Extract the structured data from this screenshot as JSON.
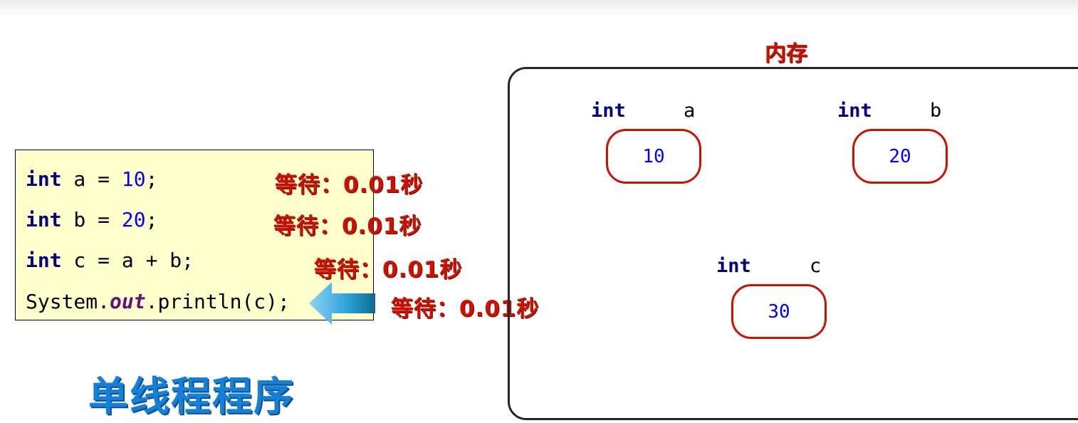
{
  "code": {
    "lines": [
      {
        "kw": "int",
        "mid": " a = ",
        "num": "10",
        "tail": ";"
      },
      {
        "kw": "int",
        "mid": " b = ",
        "num": "20",
        "tail": ";"
      },
      {
        "kw": "int",
        "rest": " c = a + b;"
      },
      {
        "obj": "System.",
        "field": "out",
        "call": ".println(c);"
      }
    ]
  },
  "waits": [
    "等待：0.01秒",
    "等待：0.01秒",
    "等待：0.01秒",
    "等待：0.01秒"
  ],
  "title": "单线程程序",
  "memory": {
    "label": "内存",
    "vars": [
      {
        "type": "int",
        "name": "a",
        "value": "10"
      },
      {
        "type": "int",
        "name": "b",
        "value": "20"
      },
      {
        "type": "int",
        "name": "c",
        "value": "30"
      }
    ]
  },
  "colors": {
    "accent_red": "#cc1100",
    "title_blue": "#1580d8",
    "code_bg": "#ffffcc",
    "keyword": "#000080",
    "number": "#0000ff",
    "field": "#660e7a"
  }
}
